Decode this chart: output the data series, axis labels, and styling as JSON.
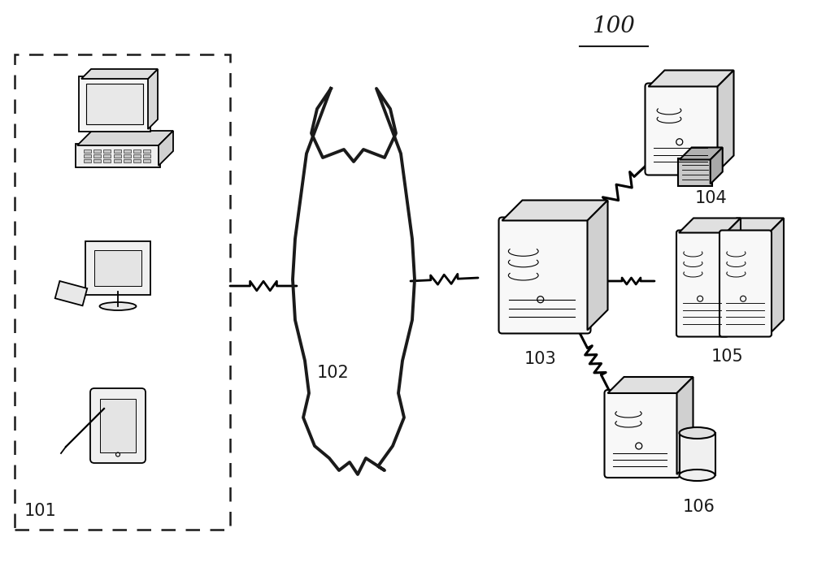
{
  "title": "100",
  "label_101": "101",
  "label_102": "102",
  "label_103": "103",
  "label_104": "104",
  "label_105": "105",
  "label_106": "106",
  "bg_color": "#ffffff",
  "line_color": "#1a1a1a",
  "figsize": [
    10.0,
    7.14
  ],
  "dpi": 100
}
